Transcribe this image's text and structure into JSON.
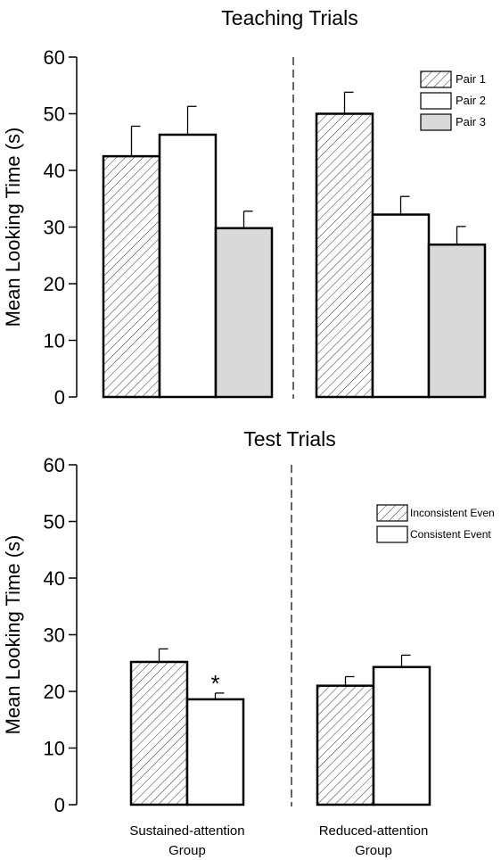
{
  "chart_data": [
    {
      "type": "bar",
      "title": "Teaching Trials",
      "ylabel": "Mean Looking Time (s)",
      "xlabel": "",
      "ylim": [
        0,
        60
      ],
      "yticks": [
        0,
        10,
        20,
        30,
        40,
        50,
        60
      ],
      "grid": false,
      "legend_position": "top-right",
      "groups": [
        "",
        ""
      ],
      "series": [
        {
          "name": "Pair 1",
          "pattern": "hatched",
          "fill": "#ffffff",
          "values": [
            42.5,
            50.0
          ],
          "errors": [
            5.3,
            3.8
          ]
        },
        {
          "name": "Pair 2",
          "pattern": "solid",
          "fill": "#ffffff",
          "values": [
            46.3,
            32.2
          ],
          "errors": [
            5.0,
            3.2
          ]
        },
        {
          "name": "Pair 3",
          "pattern": "solid",
          "fill": "#d9d9d9",
          "values": [
            29.8,
            26.9
          ],
          "errors": [
            3.0,
            3.2
          ]
        }
      ],
      "annotations": []
    },
    {
      "type": "bar",
      "title": "Test Trials",
      "ylabel": "Mean Looking Time (s)",
      "xlabel": "",
      "ylim": [
        0,
        60
      ],
      "yticks": [
        0,
        10,
        20,
        30,
        40,
        50,
        60
      ],
      "grid": false,
      "legend_position": "top-right",
      "groups": [
        "Sustained-attention\nGroup",
        "Reduced-attention\nGroup"
      ],
      "series": [
        {
          "name": "Inconsistent Even",
          "pattern": "hatched",
          "fill": "#ffffff",
          "values": [
            25.2,
            21.0
          ],
          "errors": [
            2.3,
            1.6
          ]
        },
        {
          "name": "Consistent Event",
          "pattern": "solid",
          "fill": "#ffffff",
          "values": [
            18.6,
            24.3
          ],
          "errors": [
            1.1,
            2.1
          ]
        }
      ],
      "annotations": [
        {
          "text": "*",
          "group": 0,
          "series": 1
        }
      ]
    }
  ]
}
